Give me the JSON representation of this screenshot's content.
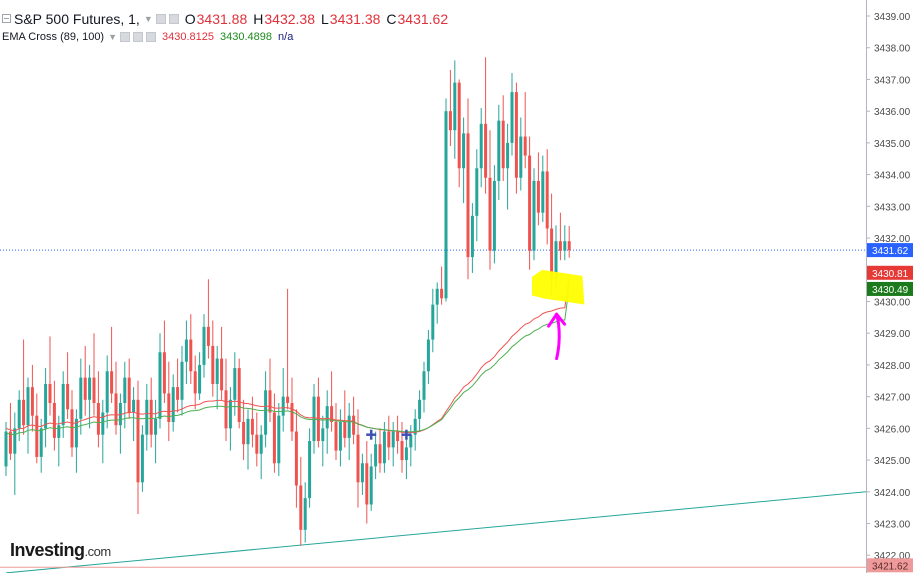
{
  "legend": {
    "symbol": "S&P 500 Futures, 1,",
    "open_key": "O",
    "open": "3431.88",
    "high_key": "H",
    "high": "3432.38",
    "low_key": "L",
    "low": "3431.38",
    "close_key": "C",
    "close": "3431.62",
    "indicator": "EMA Cross (89, 100)",
    "ema_fast_value": "3430.8125",
    "ema_slow_value": "3430.4898",
    "ema_na": "n/a"
  },
  "brand": {
    "name": "Investing",
    "suffix": ".com"
  },
  "icons": [
    "collapse-icon",
    "settings-icon",
    "hide-icon",
    "close-icon",
    "dropdown-caret-icon"
  ],
  "colors": {
    "candle_up": "#26a69a",
    "candle_down": "#ef5350",
    "ema_fast": "#ef5350",
    "ema_slow": "#4caf50",
    "trendline": "#26a69a",
    "price_line": "#2962ff",
    "highlight": "#ffff00",
    "arrow_annotation": "#ff00ff",
    "cross_marker": "#3f51b5",
    "label_current": "#2962ff",
    "label_ema_fast": "#e53935",
    "label_ema_slow": "#1b7a1b",
    "label_bottom": "#ef9a9a"
  },
  "chart_data": {
    "type": "candlestick",
    "title": "S&P 500 Futures, 1,",
    "y_axis": {
      "ticks": [
        "3439.00",
        "3438.00",
        "3437.00",
        "3436.00",
        "3435.00",
        "3434.00",
        "3433.00",
        "3432.00",
        "3431.00",
        "3430.00",
        "3429.00",
        "3428.00",
        "3427.00",
        "3426.00",
        "3425.00",
        "3424.00",
        "3423.00",
        "3422.00"
      ],
      "range": [
        3421.6,
        3439.5
      ],
      "position": "right"
    },
    "price_labels": [
      {
        "value": 3431.62,
        "text": "3431.62",
        "role": "current-price"
      },
      {
        "value": 3430.81,
        "text": "3430.81",
        "role": "ema-fast"
      },
      {
        "value": 3430.49,
        "text": "3430.49",
        "role": "ema-slow"
      },
      {
        "value": 3421.62,
        "text": "3421.62",
        "role": "bottom-marker"
      }
    ],
    "current_price": 3431.62,
    "candles": [
      [
        3424.8,
        3426.2,
        3424.5,
        3425.9
      ],
      [
        3425.9,
        3426.8,
        3425.0,
        3425.2
      ],
      [
        3425.2,
        3426.5,
        3423.9,
        3426.0
      ],
      [
        3426.0,
        3427.2,
        3425.6,
        3426.9
      ],
      [
        3426.9,
        3428.8,
        3425.8,
        3426.1
      ],
      [
        3426.1,
        3427.6,
        3425.2,
        3427.3
      ],
      [
        3427.3,
        3428.0,
        3425.9,
        3426.4
      ],
      [
        3426.4,
        3427.1,
        3424.9,
        3425.1
      ],
      [
        3425.1,
        3426.3,
        3424.6,
        3426.0
      ],
      [
        3426.0,
        3427.9,
        3425.4,
        3427.4
      ],
      [
        3427.4,
        3428.9,
        3426.4,
        3426.8
      ],
      [
        3426.8,
        3427.5,
        3425.3,
        3425.7
      ],
      [
        3425.7,
        3426.4,
        3424.8,
        3426.1
      ],
      [
        3426.1,
        3427.8,
        3425.7,
        3427.4
      ],
      [
        3427.4,
        3428.4,
        3426.3,
        3426.6
      ],
      [
        3426.6,
        3427.2,
        3425.1,
        3425.4
      ],
      [
        3425.4,
        3426.6,
        3424.6,
        3426.3
      ],
      [
        3426.3,
        3428.2,
        3425.8,
        3427.6
      ],
      [
        3427.6,
        3428.6,
        3426.4,
        3426.9
      ],
      [
        3426.9,
        3428.0,
        3426.0,
        3427.6
      ],
      [
        3427.6,
        3429.0,
        3426.4,
        3426.8
      ],
      [
        3426.8,
        3427.8,
        3425.4,
        3425.8
      ],
      [
        3425.8,
        3426.9,
        3424.9,
        3426.5
      ],
      [
        3426.5,
        3428.3,
        3426.0,
        3427.8
      ],
      [
        3427.8,
        3429.2,
        3426.8,
        3427.1
      ],
      [
        3427.1,
        3428.1,
        3425.8,
        3426.1
      ],
      [
        3426.1,
        3427.1,
        3425.2,
        3426.8
      ],
      [
        3426.8,
        3428.1,
        3426.0,
        3427.6
      ],
      [
        3427.6,
        3428.2,
        3426.3,
        3426.5
      ],
      [
        3426.5,
        3427.3,
        3425.6,
        3426.9
      ],
      [
        3426.9,
        3427.5,
        3423.3,
        3424.3
      ],
      [
        3424.3,
        3426.1,
        3424.0,
        3425.8
      ],
      [
        3425.8,
        3427.4,
        3425.3,
        3426.9
      ],
      [
        3426.9,
        3427.6,
        3425.4,
        3425.8
      ],
      [
        3425.8,
        3426.9,
        3424.9,
        3426.3
      ],
      [
        3426.3,
        3429.0,
        3426.0,
        3428.4
      ],
      [
        3428.4,
        3429.4,
        3426.8,
        3427.1
      ],
      [
        3427.1,
        3428.1,
        3425.6,
        3426.2
      ],
      [
        3426.2,
        3427.7,
        3425.9,
        3427.3
      ],
      [
        3427.3,
        3428.2,
        3426.5,
        3426.9
      ],
      [
        3426.9,
        3428.6,
        3426.4,
        3428.1
      ],
      [
        3428.1,
        3429.4,
        3427.4,
        3428.8
      ],
      [
        3428.8,
        3429.6,
        3427.4,
        3427.8
      ],
      [
        3427.8,
        3428.3,
        3426.6,
        3427.1
      ],
      [
        3427.1,
        3428.4,
        3426.9,
        3428.0
      ],
      [
        3428.0,
        3429.6,
        3427.6,
        3429.2
      ],
      [
        3429.2,
        3430.7,
        3428.2,
        3428.6
      ],
      [
        3428.6,
        3429.4,
        3427.0,
        3427.4
      ],
      [
        3427.4,
        3428.6,
        3426.6,
        3428.2
      ],
      [
        3428.2,
        3429.2,
        3426.9,
        3427.2
      ],
      [
        3427.2,
        3428.2,
        3425.6,
        3426.0
      ],
      [
        3426.0,
        3427.3,
        3425.3,
        3426.9
      ],
      [
        3426.9,
        3428.4,
        3426.4,
        3427.9
      ],
      [
        3427.9,
        3428.2,
        3426.0,
        3426.2
      ],
      [
        3426.2,
        3426.9,
        3425.0,
        3425.5
      ],
      [
        3425.5,
        3426.6,
        3424.7,
        3426.3
      ],
      [
        3426.3,
        3427.0,
        3425.4,
        3425.8
      ],
      [
        3425.8,
        3426.5,
        3424.8,
        3425.2
      ],
      [
        3425.2,
        3426.1,
        3424.4,
        3425.8
      ],
      [
        3425.8,
        3427.8,
        3425.4,
        3427.2
      ],
      [
        3427.2,
        3428.2,
        3426.2,
        3426.5
      ],
      [
        3426.5,
        3427.1,
        3424.6,
        3424.9
      ],
      [
        3424.9,
        3426.8,
        3424.5,
        3426.4
      ],
      [
        3426.4,
        3427.9,
        3425.9,
        3427.0
      ],
      [
        3427.0,
        3430.4,
        3426.6,
        3426.8
      ],
      [
        3426.8,
        3427.6,
        3425.6,
        3425.9
      ],
      [
        3425.9,
        3426.6,
        3423.5,
        3424.2
      ],
      [
        3424.2,
        3425.1,
        3422.3,
        3422.8
      ],
      [
        3422.8,
        3424.3,
        3422.4,
        3423.8
      ],
      [
        3423.8,
        3426.0,
        3423.5,
        3425.6
      ],
      [
        3425.6,
        3427.4,
        3425.2,
        3427.0
      ],
      [
        3427.0,
        3427.6,
        3425.4,
        3425.6
      ],
      [
        3425.6,
        3426.4,
        3424.8,
        3426.0
      ],
      [
        3426.0,
        3427.2,
        3425.2,
        3426.7
      ],
      [
        3426.7,
        3427.8,
        3425.9,
        3426.2
      ],
      [
        3426.2,
        3426.8,
        3425.0,
        3425.3
      ],
      [
        3425.3,
        3426.6,
        3424.8,
        3426.2
      ],
      [
        3426.2,
        3427.2,
        3425.4,
        3425.7
      ],
      [
        3425.7,
        3426.8,
        3425.0,
        3426.4
      ],
      [
        3426.4,
        3427.0,
        3425.5,
        3425.8
      ],
      [
        3425.8,
        3426.6,
        3423.5,
        3424.3
      ],
      [
        3424.3,
        3425.2,
        3423.9,
        3424.9
      ],
      [
        3424.9,
        3425.6,
        3423.0,
        3423.6
      ],
      [
        3423.6,
        3425.2,
        3423.4,
        3424.8
      ],
      [
        3424.8,
        3425.9,
        3424.4,
        3425.5
      ],
      [
        3425.5,
        3426.0,
        3424.6,
        3424.9
      ],
      [
        3424.9,
        3426.2,
        3424.6,
        3425.9
      ],
      [
        3425.9,
        3426.4,
        3425.0,
        3425.4
      ],
      [
        3425.4,
        3426.2,
        3424.8,
        3425.9
      ],
      [
        3425.9,
        3426.4,
        3425.2,
        3425.6
      ],
      [
        3425.6,
        3426.2,
        3424.6,
        3425.0
      ],
      [
        3425.0,
        3425.7,
        3424.4,
        3425.4
      ],
      [
        3425.4,
        3426.1,
        3424.8,
        3425.8
      ],
      [
        3425.8,
        3426.6,
        3425.3,
        3426.3
      ],
      [
        3426.3,
        3427.2,
        3425.9,
        3426.9
      ],
      [
        3426.9,
        3428.1,
        3426.5,
        3427.8
      ],
      [
        3427.8,
        3429.1,
        3427.4,
        3428.8
      ],
      [
        3428.8,
        3430.4,
        3428.4,
        3429.9
      ],
      [
        3429.9,
        3430.6,
        3429.3,
        3430.4
      ],
      [
        3430.4,
        3431.1,
        3429.9,
        3430.1
      ],
      [
        3430.1,
        3436.4,
        3430.0,
        3436.0
      ],
      [
        3436.0,
        3437.3,
        3434.9,
        3435.4
      ],
      [
        3435.4,
        3437.6,
        3434.5,
        3436.9
      ],
      [
        3436.9,
        3437.0,
        3433.6,
        3434.2
      ],
      [
        3434.2,
        3435.8,
        3433.1,
        3435.3
      ],
      [
        3435.3,
        3436.4,
        3430.7,
        3431.4
      ],
      [
        3431.4,
        3433.1,
        3430.9,
        3432.7
      ],
      [
        3432.7,
        3434.8,
        3431.9,
        3434.2
      ],
      [
        3434.2,
        3436.1,
        3433.6,
        3435.6
      ],
      [
        3435.6,
        3437.7,
        3433.4,
        3433.9
      ],
      [
        3433.9,
        3435.4,
        3431.0,
        3431.6
      ],
      [
        3431.6,
        3434.3,
        3431.2,
        3433.8
      ],
      [
        3433.8,
        3436.2,
        3433.2,
        3435.7
      ],
      [
        3435.7,
        3436.5,
        3433.8,
        3434.2
      ],
      [
        3434.2,
        3435.6,
        3432.9,
        3435.0
      ],
      [
        3435.0,
        3437.2,
        3434.6,
        3436.6
      ],
      [
        3436.6,
        3436.9,
        3433.4,
        3433.9
      ],
      [
        3433.9,
        3435.8,
        3433.5,
        3435.2
      ],
      [
        3435.2,
        3436.6,
        3434.2,
        3434.6
      ],
      [
        3434.6,
        3435.2,
        3431.0,
        3431.6
      ],
      [
        3431.6,
        3434.2,
        3431.3,
        3433.8
      ],
      [
        3433.8,
        3434.7,
        3432.4,
        3432.8
      ],
      [
        3432.8,
        3434.6,
        3432.5,
        3434.1
      ],
      [
        3434.1,
        3434.8,
        3431.8,
        3432.3
      ],
      [
        3432.3,
        3433.4,
        3430.2,
        3430.7
      ],
      [
        3430.7,
        3432.4,
        3430.4,
        3431.9
      ],
      [
        3431.9,
        3432.8,
        3431.3,
        3431.6
      ],
      [
        3431.6,
        3432.4,
        3431.3,
        3431.9
      ],
      [
        3431.9,
        3432.38,
        3431.38,
        3431.62
      ]
    ],
    "ema_fast": [
      3426.0,
      3425.95,
      3425.92,
      3425.99,
      3426.0,
      3426.08,
      3426.11,
      3426.07,
      3426.06,
      3426.13,
      3426.17,
      3426.14,
      3426.14,
      3426.18,
      3426.2,
      3426.16,
      3426.17,
      3426.24,
      3426.28,
      3426.33,
      3426.37,
      3426.34,
      3426.35,
      3426.41,
      3426.43,
      3426.42,
      3426.43,
      3426.48,
      3426.5,
      3426.51,
      3426.46,
      3426.45,
      3426.47,
      3426.46,
      3426.46,
      3426.52,
      3426.54,
      3426.52,
      3426.55,
      3426.56,
      3426.61,
      3426.68,
      3426.72,
      3426.73,
      3426.76,
      3426.83,
      3426.86,
      3426.86,
      3426.88,
      3426.88,
      3426.84,
      3426.84,
      3426.86,
      3426.84,
      3426.79,
      3426.78,
      3426.75,
      3426.71,
      3426.69,
      3426.7,
      3426.7,
      3426.64,
      3426.64,
      3426.65,
      3426.65,
      3426.62,
      3426.54,
      3426.42,
      3426.35,
      3426.33,
      3426.34,
      3426.31,
      3426.3,
      3426.31,
      3426.3,
      3426.26,
      3426.26,
      3426.24,
      3426.24,
      3426.22,
      3426.14,
      3426.1,
      3426.04,
      3426.01,
      3425.99,
      3425.96,
      3425.95,
      3425.93,
      3425.92,
      3425.91,
      3425.88,
      3425.87,
      3425.87,
      3425.88,
      3425.9,
      3425.95,
      3426.02,
      3426.12,
      3426.22,
      3426.31,
      3426.53,
      3426.73,
      3426.96,
      3427.11,
      3427.3,
      3427.4,
      3427.53,
      3427.71,
      3427.91,
      3428.05,
      3428.13,
      3428.26,
      3428.44,
      3428.58,
      3428.72,
      3428.9,
      3429.02,
      3429.16,
      3429.28,
      3429.33,
      3429.45,
      3429.51,
      3429.62,
      3429.67,
      3429.7,
      3429.75,
      3429.79,
      3429.8,
      3430.81
    ],
    "ema_slow": [
      3425.85,
      3425.82,
      3425.8,
      3425.86,
      3425.87,
      3425.94,
      3425.96,
      3425.93,
      3425.93,
      3425.98,
      3426.02,
      3426.0,
      3426.0,
      3426.03,
      3426.05,
      3426.02,
      3426.03,
      3426.09,
      3426.12,
      3426.16,
      3426.2,
      3426.18,
      3426.19,
      3426.24,
      3426.26,
      3426.26,
      3426.27,
      3426.31,
      3426.33,
      3426.34,
      3426.3,
      3426.3,
      3426.32,
      3426.31,
      3426.32,
      3426.36,
      3426.39,
      3426.37,
      3426.4,
      3426.41,
      3426.45,
      3426.51,
      3426.55,
      3426.56,
      3426.58,
      3426.64,
      3426.67,
      3426.68,
      3426.7,
      3426.7,
      3426.67,
      3426.68,
      3426.69,
      3426.68,
      3426.64,
      3426.63,
      3426.61,
      3426.58,
      3426.56,
      3426.57,
      3426.58,
      3426.53,
      3426.53,
      3426.54,
      3426.55,
      3426.52,
      3426.46,
      3426.36,
      3426.3,
      3426.28,
      3426.29,
      3426.27,
      3426.26,
      3426.27,
      3426.26,
      3426.23,
      3426.23,
      3426.21,
      3426.21,
      3426.2,
      3426.13,
      3426.09,
      3426.04,
      3426.01,
      3425.99,
      3425.97,
      3425.96,
      3425.94,
      3425.93,
      3425.92,
      3425.9,
      3425.89,
      3425.89,
      3425.9,
      3425.92,
      3425.96,
      3426.02,
      3426.1,
      3426.19,
      3426.27,
      3426.46,
      3426.63,
      3426.83,
      3426.97,
      3427.13,
      3427.22,
      3427.34,
      3427.5,
      3427.68,
      3427.81,
      3427.88,
      3428.0,
      3428.16,
      3428.28,
      3428.41,
      3428.57,
      3428.68,
      3428.8,
      3428.91,
      3428.96,
      3429.07,
      3429.13,
      3429.23,
      3429.28,
      3429.31,
      3429.36,
      3429.4,
      3429.42,
      3430.49
    ],
    "cross_markers": [
      {
        "index": 83,
        "value": 3425.8
      },
      {
        "index": 91,
        "value": 3425.8
      }
    ],
    "trendline": {
      "start": [
        0,
        3421.6
      ],
      "end": [
        160,
        3424.0
      ]
    },
    "highlight": {
      "from_index": 120,
      "to_index": 131,
      "low": 3430.0,
      "high": 3430.9
    },
    "arrow_annotation": {
      "index": 124,
      "from": 3428.2,
      "to": 3429.6
    }
  }
}
